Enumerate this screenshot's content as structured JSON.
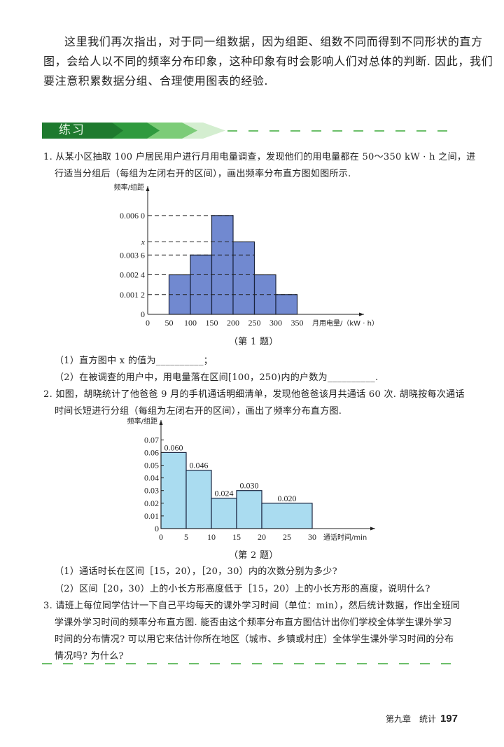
{
  "intro": [
    "这里我们再次指出，对于同一组数据，因为组距、组数不同而得到不同形状的直方",
    "图，会给人以不同的频率分布印象，这种印象有时会影响人们对总体的判断. 因此，我们",
    "要注意积累数据分组、合理使用图表的经验."
  ],
  "section_title": "练习",
  "q1": {
    "lines": [
      "1. 从某小区抽取 100 户居民用户进行月用电量调查，发现他们的用电量都在 50～350 kW · h 之间，进",
      "行适当分组后（每组为左闭右开的区间），画出频率分布直方图如图所示."
    ],
    "caption": "（第 1 题）",
    "sub": [
      "（1）直方图中 x 的值为__________；",
      "（2）在被调查的用户中，用电量落在区间[100，250)内的户数为__________."
    ]
  },
  "q2": {
    "lines": [
      "2. 如图，胡晓统计了他爸爸 9 月的手机通话明细清单，发现他爸爸该月共通话 60 次. 胡晓按每次通话",
      "时间长短进行分组（每组为左闭右开的区间），画出了频率分布直方图."
    ],
    "caption": "（第 2 题）",
    "sub": [
      "（1）通话时长在区间［15，20），［20，30）内的次数分别为多少?",
      "（2）区间［20，30）上的小长方形高度低于［15，20）上的小长方形的高度，说明什么?"
    ]
  },
  "q3": {
    "lines": [
      "3. 请班上每位同学估计一下自己平均每天的课外学习时间（单位：min），然后统计数据，作出全班同",
      "学课外学习时间的频率分布直方图. 能否由这个频率分布直方图估计出你们学校全体学生课外学习",
      "时间的分布情况? 可以用它来估计你所在地区（城市、乡镇或村庄）全体学生课外学习时间的分布",
      "情况吗? 为什么?"
    ]
  },
  "footer": {
    "chapter": "第九章　统计",
    "page": "197"
  },
  "colors": {
    "banner_dark": "#1e7a2e",
    "banner_light": "#b9e3b5",
    "chart1_bar": "#7189d0",
    "chart2_bar": "#aadcf0",
    "dash": "#6cbf6a"
  },
  "chart_data": [
    {
      "type": "bar",
      "ylabel": "频率/组距",
      "xlabel": "月用电量/（kW · h）",
      "x_ticks": [
        "0",
        "50",
        "100",
        "150",
        "200",
        "250",
        "300",
        "350"
      ],
      "y_ticks": [
        {
          "value": 0,
          "label": "0"
        },
        {
          "value": 0.0012,
          "label": "0.001 2"
        },
        {
          "value": 0.0024,
          "label": "0.002 4"
        },
        {
          "value": 0.0036,
          "label": "0.003 6"
        },
        {
          "value": 0.0044,
          "label": "x"
        },
        {
          "value": 0.006,
          "label": "0.006 0"
        }
      ],
      "bins": [
        [
          50,
          100
        ],
        [
          100,
          150
        ],
        [
          150,
          200
        ],
        [
          200,
          250
        ],
        [
          250,
          300
        ],
        [
          300,
          350
        ]
      ],
      "values": [
        0.0024,
        0.0036,
        0.006,
        0.0044,
        0.0024,
        0.0012
      ],
      "xlim": [
        0,
        500
      ],
      "ylim": [
        0,
        0.0085
      ],
      "grid": false
    },
    {
      "type": "bar",
      "ylabel": "频率/组距",
      "xlabel": "通话时间/min",
      "x_ticks": [
        "0",
        "5",
        "10",
        "15",
        "20",
        "25",
        "30"
      ],
      "y_ticks": [
        "0",
        "0.01",
        "0.02",
        "0.03",
        "0.04",
        "0.05",
        "0.06",
        "0.07"
      ],
      "bins": [
        [
          0,
          5
        ],
        [
          5,
          10
        ],
        [
          10,
          15
        ],
        [
          15,
          20
        ],
        [
          20,
          30
        ]
      ],
      "values": [
        0.06,
        0.046,
        0.024,
        0.03,
        0.02
      ],
      "data_labels": [
        "0.060",
        "0.046",
        "0.024",
        "0.030",
        "0.020"
      ],
      "xlim": [
        0,
        42
      ],
      "ylim": [
        0,
        0.08
      ],
      "grid": false
    }
  ]
}
